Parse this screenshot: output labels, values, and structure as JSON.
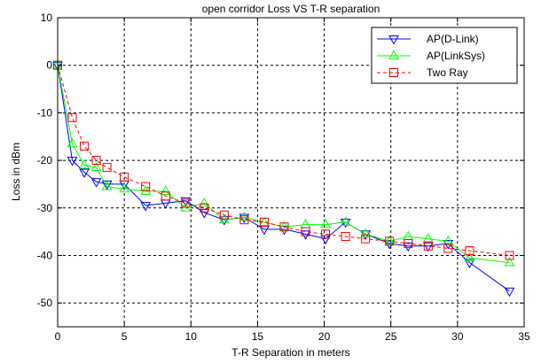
{
  "chart_data": {
    "type": "line",
    "title": "open corridor Loss VS T-R separation",
    "xlabel": "T-R Separation in meters",
    "ylabel": "Loss in dBm",
    "xlim": [
      0,
      35
    ],
    "ylim": [
      -55,
      10
    ],
    "xticks": [
      0,
      5,
      10,
      15,
      20,
      25,
      30,
      35
    ],
    "yticks": [
      10,
      0,
      -10,
      -20,
      -30,
      -40,
      -50
    ],
    "grid": true,
    "grid_style": "dashed",
    "legend_position": "top-right",
    "series": [
      {
        "name": "AP(D-Link)",
        "color": "#0000ff",
        "marker": "triangle-down",
        "line_style": "solid",
        "x": [
          0,
          1.1,
          2.0,
          2.9,
          3.7,
          5.0,
          6.6,
          8.1,
          9.6,
          11.0,
          12.5,
          14.0,
          15.5,
          17.0,
          18.6,
          20.1,
          21.6,
          23.1,
          24.9,
          26.3,
          27.8,
          29.3,
          30.9,
          33.9
        ],
        "y": [
          0,
          -20,
          -22.5,
          -24.5,
          -25,
          -25,
          -29.5,
          -29,
          -28.5,
          -31,
          -32.5,
          -32,
          -34.5,
          -34.5,
          -35.5,
          -36.5,
          -33,
          -35.5,
          -37.5,
          -38,
          -38,
          -37.5,
          -41.5,
          -47.5
        ]
      },
      {
        "name": "AP(LinkSys)",
        "color": "#00ff00",
        "marker": "triangle-up",
        "line_style": "solid",
        "x": [
          0,
          1.1,
          2.0,
          2.9,
          3.7,
          5.0,
          6.6,
          8.1,
          9.6,
          11.0,
          12.5,
          14.0,
          15.5,
          17.0,
          18.6,
          20.1,
          21.6,
          23.1,
          24.9,
          26.3,
          27.8,
          29.3,
          30.9,
          33.9
        ],
        "y": [
          0,
          -16.5,
          -21,
          -21.5,
          -25.5,
          -26,
          -26.5,
          -26.5,
          -30,
          -29,
          -32.5,
          -32,
          -33,
          -34,
          -33.5,
          -33.5,
          -33,
          -35.5,
          -37,
          -36,
          -36.5,
          -37,
          -40.5,
          -41.5
        ]
      },
      {
        "name": "Two Ray",
        "color": "#ff0000",
        "marker": "square",
        "line_style": "dashed",
        "x": [
          0,
          1.1,
          2.0,
          2.9,
          3.7,
          5.0,
          6.6,
          8.1,
          9.6,
          11.0,
          12.5,
          14.0,
          15.5,
          17.0,
          18.6,
          20.1,
          21.6,
          23.1,
          24.9,
          26.3,
          27.8,
          29.3,
          30.9,
          33.9
        ],
        "y": [
          0,
          -11,
          -17,
          -20,
          -21.5,
          -23.5,
          -25.5,
          -27.5,
          -29,
          -30,
          -31.5,
          -32.5,
          -33,
          -34,
          -35,
          -35.5,
          -36,
          -36.5,
          -37,
          -37.5,
          -38,
          -38.5,
          -39,
          -40
        ]
      }
    ]
  }
}
